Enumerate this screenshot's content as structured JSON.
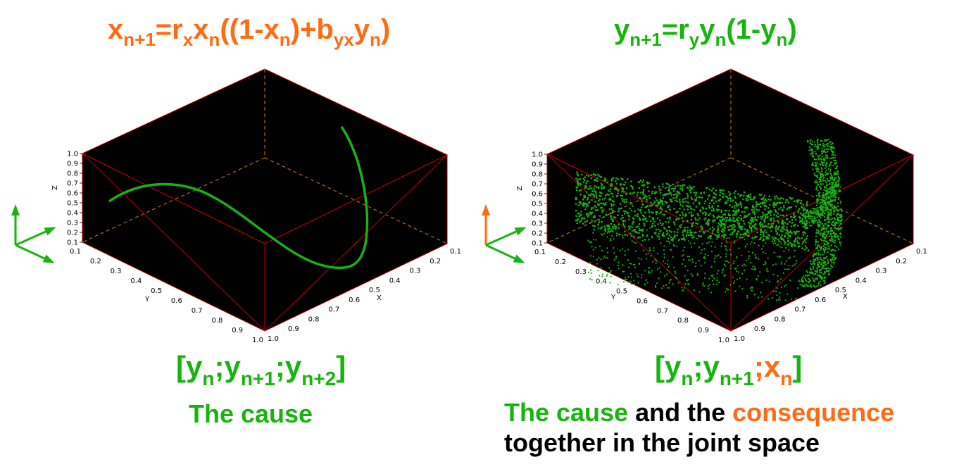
{
  "left_panel": {
    "equation": {
      "base1": "x",
      "sub1": "n+1",
      "t1": "=r",
      "sub2": "x",
      "t2": "x",
      "sub3": "n",
      "t3": "((1-x",
      "sub4": "n",
      "t4": ")+b",
      "sub5": "yx",
      "t5": "y",
      "sub6": "n",
      "t6": ")"
    },
    "vector": {
      "t1": "[y",
      "s1": "n",
      "t2": ";y",
      "s2": "n+1",
      "t3": ";y",
      "s3": "n+2",
      "t4": "]"
    },
    "caption": "The cause"
  },
  "right_panel": {
    "equation": {
      "base1": "y",
      "sub1": "n+1",
      "t1": "=r",
      "sub2": "y",
      "t2": "y",
      "sub3": "n",
      "t3": "(1-y",
      "sub4": "n",
      "t4": ")"
    },
    "vector": {
      "t1": "[y",
      "s1": "n",
      "t2": ";y",
      "s2": "n+1",
      "t3": ";x",
      "s3": "n",
      "t4": "]"
    },
    "caption": {
      "part1": "The cause",
      "part2": " and the ",
      "part3": "consequence",
      "line2": "together in the joint space"
    }
  },
  "axes": {
    "z_ticks": [
      "1.0",
      "0.9",
      "0.8",
      "0.7",
      "0.6",
      "0.5",
      "0.4",
      "0.3",
      "0.2",
      "0.1"
    ],
    "y_ticks": [
      "0.1",
      "0.2",
      "0.3",
      "0.4",
      "0.5",
      "0.6",
      "0.7",
      "0.8",
      "0.9",
      "1.0"
    ],
    "x_ticks": [
      "0.1",
      "0.2",
      "0.3",
      "0.4",
      "0.5",
      "0.6",
      "0.7",
      "0.8",
      "0.9",
      "1.0"
    ],
    "z_label": "Z",
    "y_label": "Y",
    "x_label": "X"
  },
  "colors": {
    "orange": "#ff6a12",
    "green": "#17b40f",
    "box": "#000000",
    "edge": "#c00000"
  },
  "icons": [
    "axes-orientation-icon-left",
    "axes-orientation-icon-right"
  ]
}
